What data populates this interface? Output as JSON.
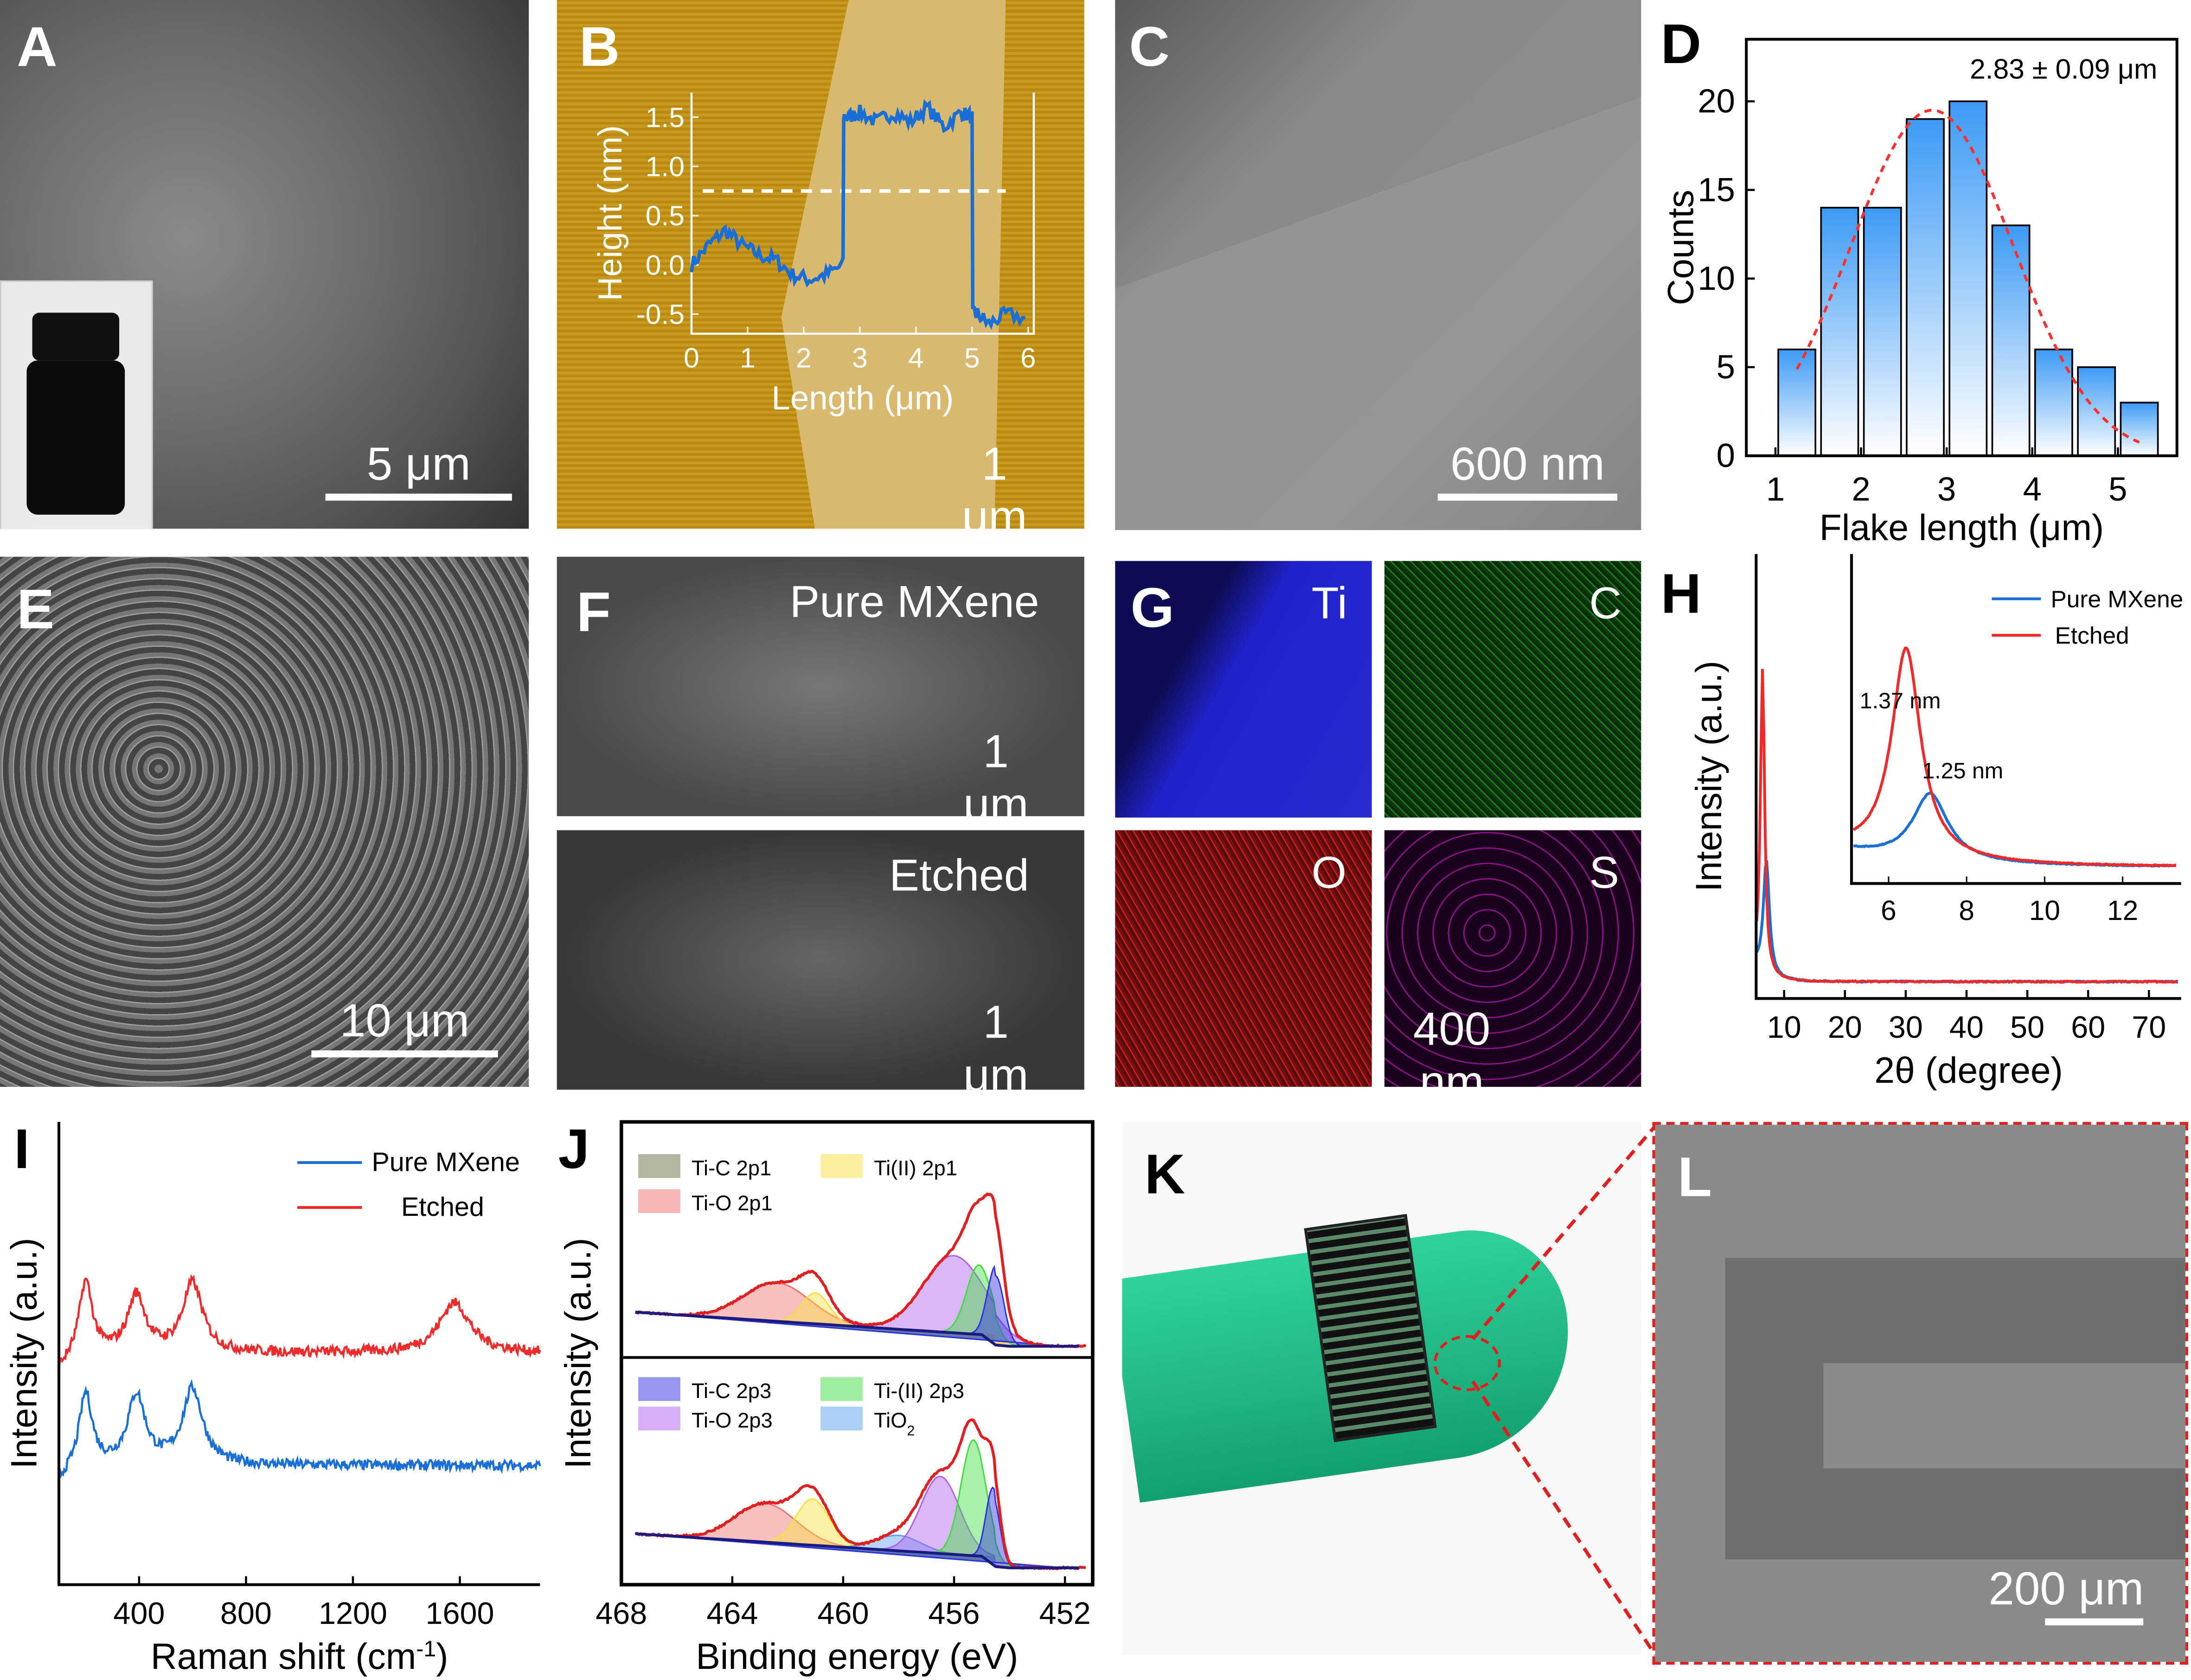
{
  "panels": {
    "A": {
      "letter": "A",
      "scale": "5 μm"
    },
    "B": {
      "letter": "B",
      "scale": "1 μm"
    },
    "C": {
      "letter": "C",
      "scale": "600 nm"
    },
    "D": {
      "letter": "D"
    },
    "E": {
      "letter": "E",
      "scale": "10 μm"
    },
    "F": {
      "letter": "F",
      "top_label": "Pure MXene",
      "top_scale": "1 μm",
      "bottom_label": "Etched",
      "bottom_scale": "1 μm"
    },
    "G": {
      "letter": "G",
      "tiles": [
        "Ti",
        "C",
        "O",
        "S"
      ],
      "scale": "400 nm",
      "colors": [
        "#1a1acc",
        "#22aa22",
        "#cc2222",
        "#b020b0"
      ]
    },
    "H": {
      "letter": "H"
    },
    "I": {
      "letter": "I"
    },
    "J": {
      "letter": "J"
    },
    "K": {
      "letter": "K"
    },
    "L": {
      "letter": "L",
      "scale": "200 μm"
    }
  },
  "chart_data": [
    {
      "id": "B",
      "type": "line",
      "xlabel": "Length (μm)",
      "ylabel": "Height (nm)",
      "xlim": [
        0,
        6.1
      ],
      "ylim": [
        -0.7,
        1.75
      ],
      "xticks": [
        0,
        1,
        2,
        3,
        4,
        5,
        6
      ],
      "yticks": [
        -0.5,
        0.0,
        0.5,
        1.0,
        1.5
      ],
      "dashed_level": 0.75,
      "color": "#1a6fd6",
      "x": [
        0,
        0.3,
        0.6,
        0.9,
        1.2,
        1.5,
        1.8,
        2.1,
        2.4,
        2.7,
        2.8,
        3.0,
        3.3,
        3.6,
        3.9,
        4.2,
        4.5,
        4.8,
        5.0,
        5.1,
        5.3,
        5.6,
        6.0
      ],
      "y": [
        0.0,
        0.2,
        0.35,
        0.2,
        0.1,
        0.05,
        -0.1,
        -0.15,
        -0.1,
        0.0,
        1.5,
        1.55,
        1.45,
        1.55,
        1.45,
        1.6,
        1.4,
        1.55,
        1.5,
        -0.5,
        -0.6,
        -0.5,
        -0.55
      ]
    },
    {
      "id": "D",
      "type": "bar",
      "xlabel": "Flake length (μm)",
      "ylabel": "Counts",
      "annotation": "2.83  ± 0.09 μm",
      "xlim": [
        0.66,
        5.69
      ],
      "ylim": [
        0,
        23.5
      ],
      "xticks": [
        1,
        2,
        3,
        4,
        5
      ],
      "yticks": [
        0,
        5,
        10,
        15,
        20
      ],
      "bin_centers": [
        1.25,
        1.75,
        2.25,
        2.75,
        3.25,
        3.75,
        4.25,
        4.75,
        5.25
      ],
      "bin_width": 0.5,
      "values": [
        6,
        14,
        14,
        19,
        20,
        13,
        6,
        5,
        3
      ],
      "fit": {
        "type": "gaussian",
        "center": 2.83,
        "amplitude": 19.5,
        "sigma": 0.95,
        "range": [
          1.25,
          5.25
        ],
        "color": "#ff3030"
      },
      "bar_color": "#3c9af5"
    },
    {
      "id": "H",
      "type": "line",
      "xlabel": "2θ (degree)",
      "ylabel": "Intensity (a.u.)",
      "xlim": [
        5.4,
        75.3
      ],
      "xticks": [
        10,
        20,
        30,
        40,
        50,
        60,
        70
      ],
      "series": [
        {
          "name": "Pure MXene",
          "color": "#1a6fd6",
          "peak": {
            "center": 7.07,
            "height": 0.38,
            "width": 0.6
          }
        },
        {
          "name": "Etched",
          "color": "#ee2a2a",
          "peak": {
            "center": 6.45,
            "height": 1.0,
            "width": 0.4
          }
        }
      ],
      "inset": {
        "xlim": [
          5.05,
          13.5
        ],
        "xticks": [
          6,
          8,
          10,
          12
        ],
        "annotations": [
          "1.37 nm",
          "1.25 nm"
        ]
      },
      "legend": "top-right"
    },
    {
      "id": "I",
      "type": "line",
      "xlabel": "Raman shift (cm",
      "xlabel_sup": "-1",
      "xlabel_end": ")",
      "ylabel": "Intensity (a.u.)",
      "xlim": [
        100,
        1900
      ],
      "xticks": [
        400,
        800,
        1200,
        1600
      ],
      "series": [
        {
          "name": "Pure MXene",
          "color": "#1a6fd6",
          "peaks": [
            [
              200,
              0.6,
              30
            ],
            [
              390,
              0.55,
              40
            ],
            [
              600,
              0.6,
              45
            ]
          ]
        },
        {
          "name": "Etched",
          "color": "#ee2a2a",
          "peaks": [
            [
              200,
              0.6,
              30
            ],
            [
              390,
              0.45,
              40
            ],
            [
              600,
              0.55,
              45
            ],
            [
              1580,
              0.4,
              70
            ]
          ]
        }
      ],
      "legend": "top-right"
    },
    {
      "id": "J",
      "type": "area",
      "xlabel": "Binding energy (eV)",
      "ylabel": "Intensity (a.u.)",
      "xlim": [
        468,
        451
      ],
      "xticks": [
        468,
        464,
        460,
        456,
        452
      ],
      "legend_top": [
        {
          "name": "Ti-C 2p1",
          "color": "#6b6b4a"
        },
        {
          "name": "Ti(II) 2p1",
          "color": "#f5e040"
        },
        {
          "name": "Ti-O 2p1",
          "color": "#f07070"
        }
      ],
      "legend_bottom": [
        {
          "name": "Ti-C 2p3",
          "color": "#3030e0"
        },
        {
          "name": "Ti-(II) 2p3",
          "color": "#40dd40"
        },
        {
          "name": "Ti-O 2p3",
          "color": "#b060f0"
        },
        {
          "name": "TiO",
          "sub": "2",
          "color": "#5aa0f0"
        }
      ],
      "top_components": [
        [
          462.4,
          0.25,
          1.2,
          "#f07070"
        ],
        [
          461.0,
          0.2,
          0.5,
          "#f5e040"
        ],
        [
          456.0,
          0.5,
          1.1,
          "#b060f0"
        ],
        [
          455.1,
          0.45,
          0.45,
          "#40dd40"
        ],
        [
          454.5,
          0.45,
          0.3,
          "#3030e0"
        ]
      ],
      "bottom_components": [
        [
          462.8,
          0.25,
          1.1,
          "#f07070"
        ],
        [
          461.1,
          0.3,
          0.6,
          "#f5e040"
        ],
        [
          458.0,
          0.1,
          0.8,
          "#5aa0f0"
        ],
        [
          456.5,
          0.5,
          0.7,
          "#b060f0"
        ],
        [
          455.3,
          0.75,
          0.45,
          "#40dd40"
        ],
        [
          454.6,
          0.45,
          0.25,
          "#3030e0"
        ]
      ]
    }
  ]
}
